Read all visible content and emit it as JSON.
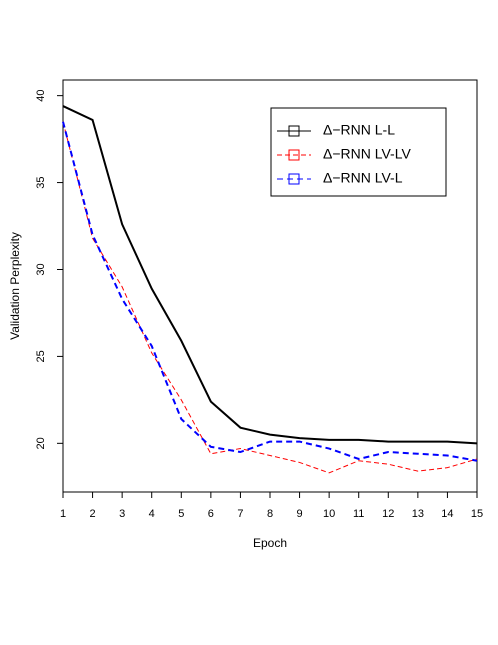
{
  "chart_data": {
    "type": "line",
    "x_label": "Epoch",
    "y_label": "Validation Perplexity",
    "x": [
      1,
      2,
      3,
      4,
      5,
      6,
      7,
      8,
      9,
      10,
      11,
      12,
      13,
      14,
      15
    ],
    "xlim": [
      1,
      15
    ],
    "xticks": [
      1,
      2,
      3,
      4,
      5,
      6,
      7,
      8,
      9,
      10,
      11,
      12,
      13,
      14,
      15
    ],
    "ylim": [
      17.2,
      40.9
    ],
    "yticks": [
      20,
      25,
      30,
      35,
      40
    ],
    "legend": "top-right",
    "series": [
      {
        "name": "Δ−RNN L-L",
        "color": "#000000",
        "values": [
          39.4,
          38.6,
          32.6,
          28.9,
          25.9,
          22.4,
          20.9,
          20.5,
          20.3,
          20.2,
          20.2,
          20.1,
          20.1,
          20.1,
          20.0
        ]
      },
      {
        "name": "Δ−RNN LV-LV",
        "color": "#ff0000",
        "values": [
          38.5,
          31.8,
          29.0,
          25.2,
          22.5,
          19.4,
          19.7,
          19.3,
          18.9,
          18.3,
          19.0,
          18.8,
          18.4,
          18.6,
          19.1
        ]
      },
      {
        "name": "Δ−RNN LV-L",
        "color": "#0000ff",
        "values": [
          38.5,
          32.0,
          28.3,
          25.6,
          21.4,
          19.8,
          19.5,
          20.1,
          20.1,
          19.7,
          19.1,
          19.5,
          19.4,
          19.3,
          19.0
        ]
      }
    ]
  }
}
